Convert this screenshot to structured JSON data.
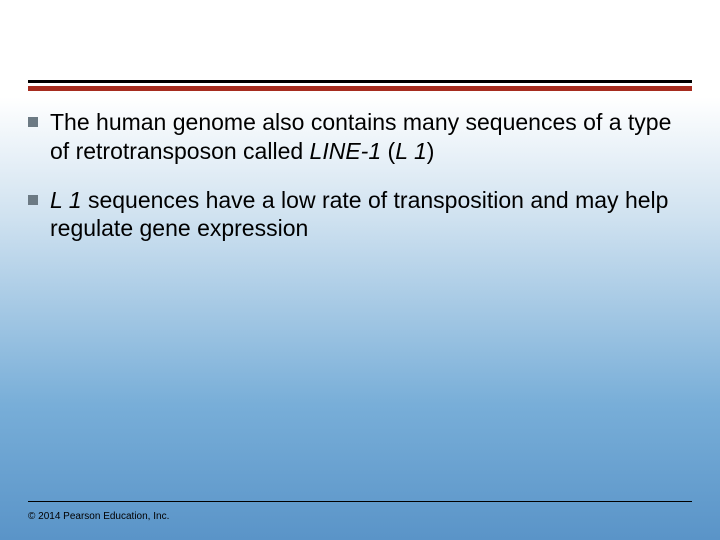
{
  "layout": {
    "top_rule_color": "#000000",
    "accent_rule_color": "#a62c1f",
    "bullet_square_color": "#6c7a84",
    "background_gradient": [
      "#ffffff",
      "#d0e2f0",
      "#78aed8",
      "#5a94c8"
    ],
    "body_fontsize": 23,
    "copyright_fontsize": 10
  },
  "bullets": [
    {
      "prefix": "The human genome also contains many sequences of a type of retrotransposon called ",
      "italic1": "LINE-1",
      "mid": " (",
      "italic2": "L 1",
      "suffix": ")"
    },
    {
      "italic1": "L 1",
      "suffix": " sequences have a low rate of transposition and may help regulate gene expression"
    }
  ],
  "copyright": "© 2014 Pearson Education, Inc."
}
